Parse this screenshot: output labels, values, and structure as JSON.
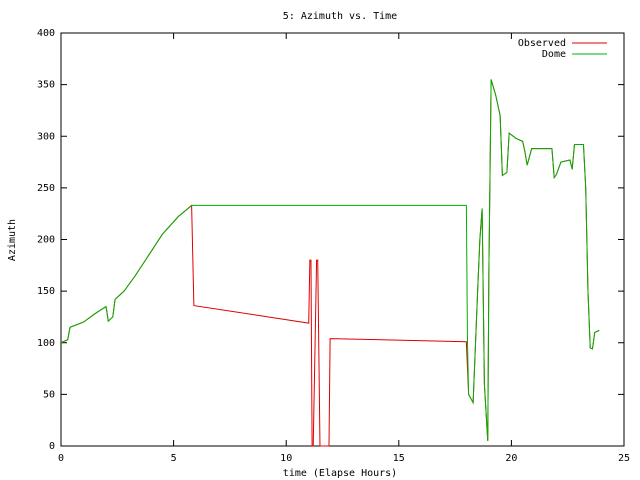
{
  "chart_data": {
    "type": "line",
    "title": "5: Azimuth vs. Time",
    "x_label": "time (Elapse Hours)",
    "y_label": "Azimuth",
    "xlim": [
      0,
      25
    ],
    "xticks": [
      0,
      5,
      10,
      15,
      20,
      25
    ],
    "ylim": [
      0,
      400
    ],
    "yticks": [
      0,
      50,
      100,
      150,
      200,
      250,
      300,
      350,
      400
    ],
    "grid": false,
    "legend": "top-right",
    "x": [
      0,
      0.3,
      0.4,
      1,
      1.5,
      2,
      2.1,
      2.3,
      2.4,
      2.8,
      3.3,
      3.9,
      4.5,
      5.2,
      5.8,
      5.9,
      11,
      11.05,
      11.1,
      11.15,
      11.2,
      11.35,
      11.4,
      11.5,
      11.55,
      11.9,
      11.95,
      18,
      18.05,
      18.1,
      18.3,
      18.5,
      18.6,
      18.7,
      18.8,
      18.95,
      19.0,
      19.1,
      19.3,
      19.5,
      19.6,
      19.8,
      19.9,
      20.2,
      20.5,
      20.6,
      20.7,
      20.9,
      21.8,
      21.9,
      22.0,
      22.2,
      22.6,
      22.7,
      22.8,
      23.2,
      23.3,
      23.4,
      23.5,
      23.6,
      23.7,
      23.9
    ],
    "series": [
      {
        "name": "Observed",
        "color": "#e00000",
        "values": [
          100,
          103,
          115,
          120,
          128,
          135,
          121,
          125,
          142,
          150,
          165,
          185,
          205,
          222,
          233,
          136,
          119,
          180,
          180,
          0,
          0,
          180,
          180,
          0,
          0,
          0,
          104,
          101,
          75,
          50,
          42,
          150,
          200,
          230,
          60,
          5,
          170,
          355,
          340,
          320,
          262,
          265,
          303,
          298,
          295,
          285,
          272,
          288,
          288,
          260,
          263,
          275,
          277,
          268,
          292,
          292,
          250,
          150,
          95,
          94,
          110,
          112
        ]
      },
      {
        "name": "Dome",
        "color": "#00b000",
        "values": [
          100,
          103,
          115,
          120,
          128,
          135,
          121,
          125,
          142,
          150,
          165,
          185,
          205,
          222,
          233,
          233,
          233,
          233,
          233,
          233,
          233,
          233,
          233,
          233,
          233,
          233,
          233,
          233,
          100,
          50,
          42,
          150,
          200,
          230,
          60,
          5,
          170,
          355,
          340,
          320,
          262,
          265,
          303,
          298,
          295,
          285,
          272,
          288,
          288,
          260,
          263,
          275,
          277,
          268,
          292,
          292,
          250,
          150,
          95,
          94,
          110,
          112
        ]
      }
    ]
  }
}
